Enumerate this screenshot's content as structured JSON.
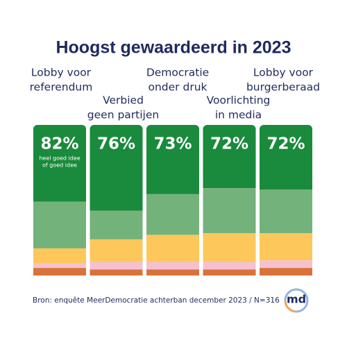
{
  "chart_data": {
    "type": "stacked_bar_100",
    "title": "Hoogst gewaardeerd in 2023",
    "categories": [
      [
        "Lobby voor",
        "referendum"
      ],
      [
        "Verbied",
        "geen partijen"
      ],
      [
        "Democratie",
        "onder druk"
      ],
      [
        "Voorlichting",
        "in media"
      ],
      [
        "Lobby voor",
        "burgerberaad"
      ]
    ],
    "ylim": [
      0,
      100
    ],
    "series": [
      {
        "color": "#1a8a3c",
        "values": [
          51,
          57,
          46,
          42,
          43
        ]
      },
      {
        "color": "#74b27b",
        "values": [
          31,
          19,
          27,
          30,
          29
        ]
      },
      {
        "color": "#fdc75c",
        "values": [
          10,
          15,
          18,
          19,
          18
        ]
      },
      {
        "color": "#f5c1d0",
        "values": [
          3,
          5,
          5,
          5,
          5
        ]
      },
      {
        "color": "#d9733a",
        "values": [
          5,
          4,
          4,
          4,
          5
        ]
      }
    ],
    "totals": {
      "values": [
        82,
        76,
        73,
        72,
        72
      ],
      "value_labels": [
        "82%",
        "76%",
        "73%",
        "72%",
        "72%"
      ]
    },
    "annotation": [
      "heel goed idee",
      "of goed idee"
    ],
    "source": "Bron: enquête MeerDemocratie achterban december 2023 / N=316",
    "logo": "md"
  }
}
